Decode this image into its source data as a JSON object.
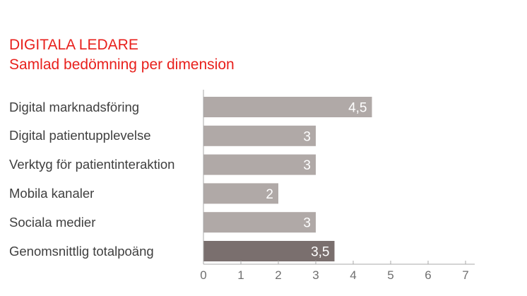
{
  "title": "DIGITALA LEDARE",
  "subtitle": "Samlad bedömning per dimension",
  "colors": {
    "title": "#e8201c",
    "bar": "#b0a9a7",
    "bar_highlight": "#7a6f6e",
    "axis": "#a8a8a8"
  },
  "chart_data": {
    "type": "bar",
    "orientation": "horizontal",
    "categories": [
      "Digital marknadsföring",
      "Digital patientupplevelse",
      "Verktyg för patientinteraktion",
      "Mobila kanaler",
      "Sociala medier",
      "Genomsnittlig totalpoäng"
    ],
    "values": [
      4.5,
      3,
      3,
      2,
      3,
      3.5
    ],
    "value_labels": [
      "4,5",
      "3",
      "3",
      "2",
      "3",
      "3,5"
    ],
    "highlight_index": 5,
    "xlim": [
      0,
      7
    ],
    "xticks": [
      "0",
      "1",
      "2",
      "3",
      "4",
      "5",
      "6",
      "7"
    ],
    "grid": false,
    "legend": "none"
  }
}
